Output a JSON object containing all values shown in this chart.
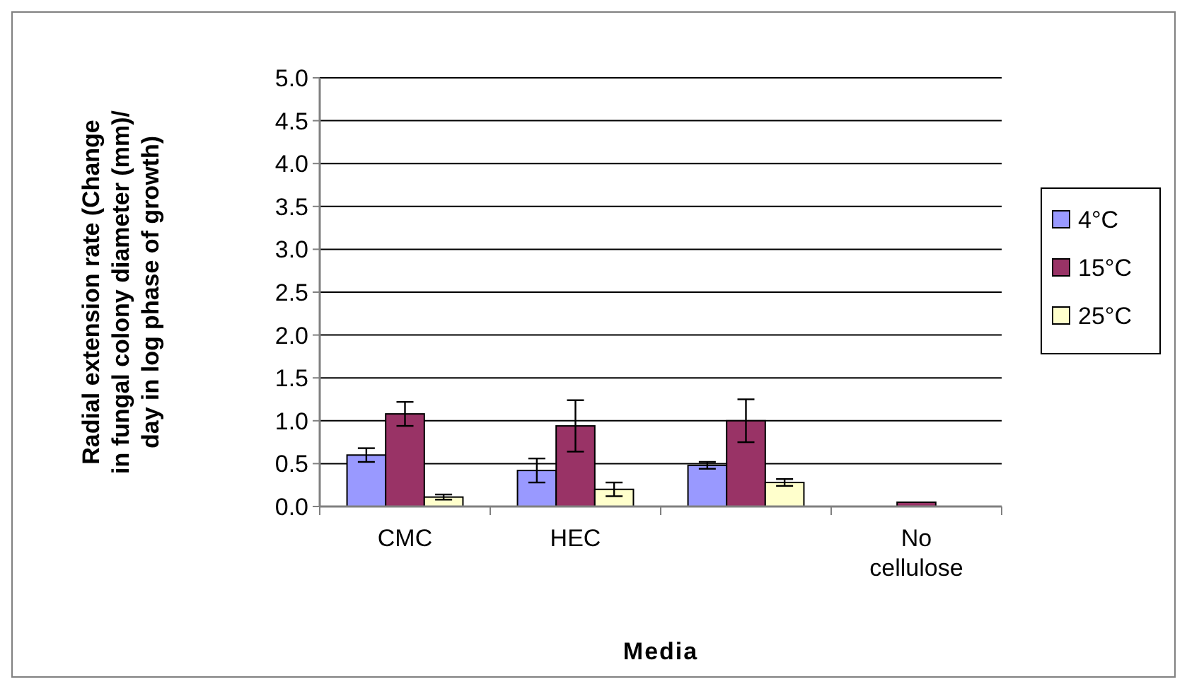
{
  "chart_data": {
    "type": "bar",
    "xlabel": "Media",
    "ylabel": "Radial extension rate (Change in fungal colony diameter (mm)/ day in log phase of growth)",
    "categories": [
      "CMC",
      "HEC",
      null,
      "No cellulose"
    ],
    "series": [
      {
        "name": "4°C",
        "color": "#9999ff",
        "values": [
          0.6,
          0.42,
          0.48,
          0
        ],
        "errors": [
          0.08,
          0.14,
          0.04,
          null
        ]
      },
      {
        "name": "15°C",
        "color": "#993366",
        "values": [
          1.08,
          0.94,
          1.0,
          0.05
        ],
        "errors": [
          0.14,
          0.3,
          0.25,
          null
        ]
      },
      {
        "name": "25°C",
        "color": "#ffffcc",
        "values": [
          0.11,
          0.2,
          0.28,
          0
        ],
        "errors": [
          0.03,
          0.08,
          0.04,
          null
        ]
      }
    ],
    "ylim": [
      0,
      5
    ],
    "yticks": [
      {
        "value": 0,
        "label": "0.0"
      },
      {
        "value": 0.5,
        "label": "0.5"
      },
      {
        "value": 1,
        "label": "1.0"
      },
      {
        "value": 1.5,
        "label": "1.5"
      },
      {
        "value": 2,
        "label": "2.0"
      },
      {
        "value": 2.5,
        "label": "2.5"
      },
      {
        "value": 3,
        "label": "3.0"
      },
      {
        "value": 3.5,
        "label": "3.5"
      },
      {
        "value": 4,
        "label": "4.0"
      },
      {
        "value": 4.5,
        "label": "4.5"
      },
      {
        "value": 5,
        "label": "5.0"
      }
    ],
    "grid": "y",
    "legend": "right"
  }
}
